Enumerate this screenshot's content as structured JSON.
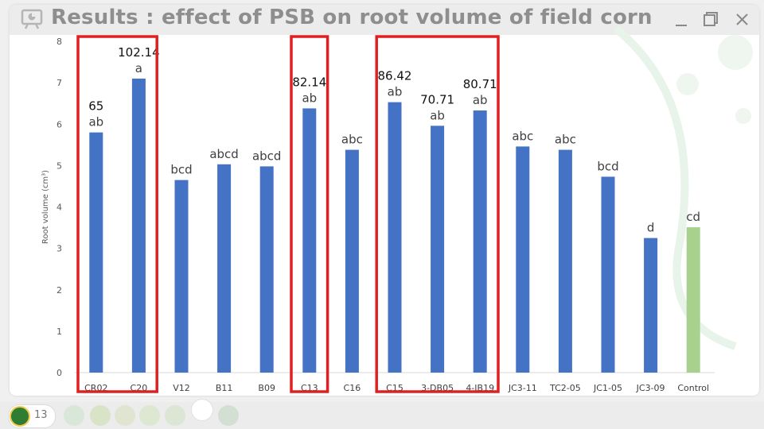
{
  "window": {
    "title": "Results : effect of PSB on root volume of field corn",
    "controls": [
      "minimize",
      "restore",
      "close"
    ]
  },
  "taskbar": {
    "page_number": "13",
    "icons": [
      "university-logo",
      "leaf-icon",
      "p-icon",
      "pencil-icon",
      "spiral-icon",
      "magnifier-icon",
      "slide-icon",
      "leaf-outline-icon"
    ]
  },
  "chart_data": {
    "type": "bar",
    "title": "",
    "xlabel": "",
    "ylabel": "Root volume (cm³)",
    "ylim": [
      0,
      8
    ],
    "yticks": [
      0,
      1,
      2,
      3,
      4,
      5,
      6,
      7,
      8
    ],
    "grid": false,
    "categories": [
      "CR02",
      "C20",
      "V12",
      "B11",
      "B09",
      "C13",
      "C16",
      "C15",
      "3-DB05",
      "4-IB19",
      "JC3-11",
      "TC2-05",
      "JC1-05",
      "JC3-09",
      "Control"
    ],
    "values": [
      5.8,
      7.1,
      4.65,
      5.03,
      4.98,
      6.38,
      5.38,
      6.53,
      5.96,
      6.33,
      5.46,
      5.38,
      4.73,
      3.25,
      3.51
    ],
    "colors": [
      "#4472c4",
      "#4472c4",
      "#4472c4",
      "#4472c4",
      "#4472c4",
      "#4472c4",
      "#4472c4",
      "#4472c4",
      "#4472c4",
      "#4472c4",
      "#4472c4",
      "#4472c4",
      "#4472c4",
      "#4472c4",
      "#a9d18e"
    ],
    "letters": [
      "ab",
      "a",
      "bcd",
      "abcd",
      "abcd",
      "ab",
      "abc",
      "ab",
      "ab",
      "ab",
      "abc",
      "abc",
      "bcd",
      "d",
      "cd"
    ],
    "percent_labels": [
      {
        "category": "CR02",
        "text": "65"
      },
      {
        "category": "C20",
        "text": "102.14"
      },
      {
        "category": "C13",
        "text": "82.14"
      },
      {
        "category": "C15",
        "text": "86.42"
      },
      {
        "category": "3-DB05",
        "text": "70.71"
      },
      {
        "category": "4-IB19",
        "text": "80.71"
      }
    ],
    "highlight_groups": [
      [
        "CR02",
        "C20"
      ],
      [
        "C13"
      ],
      [
        "C15",
        "3-DB05",
        "4-IB19"
      ]
    ],
    "highlight_color": "#e02020"
  }
}
